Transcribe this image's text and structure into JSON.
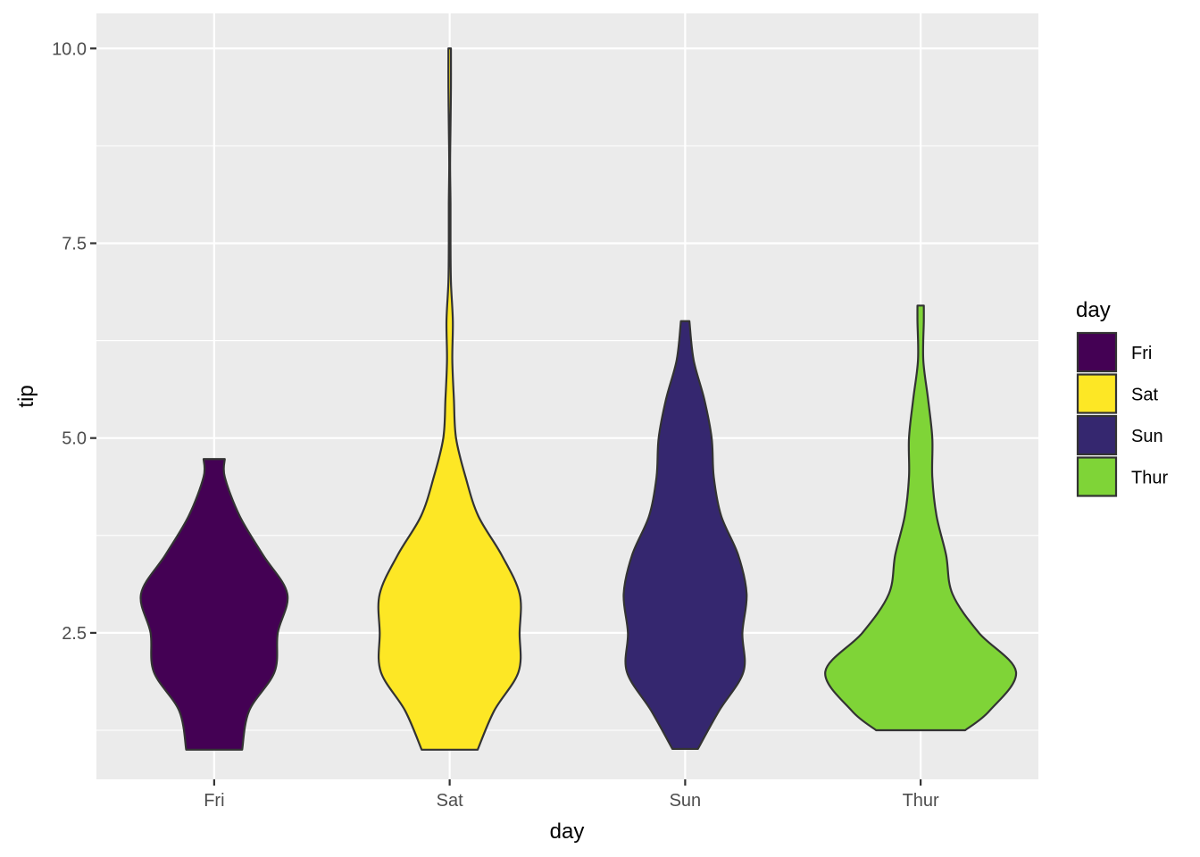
{
  "chart_data": {
    "type": "violin",
    "xlabel": "day",
    "ylabel": "tip",
    "categories": [
      "Fri",
      "Sat",
      "Sun",
      "Thur"
    ],
    "ylim": [
      0.62,
      10.45
    ],
    "yticks": [
      2.5,
      5.0,
      7.5,
      10.0
    ],
    "ytick_labels": [
      "2.5",
      "5.0",
      "7.5",
      "10.0"
    ],
    "grid": true,
    "legend": {
      "title": "day",
      "placement": "right",
      "entries": [
        "Fri",
        "Sat",
        "Sun",
        "Thur"
      ]
    },
    "colors": {
      "Fri": "#440154",
      "Sat": "#FDE725",
      "Sun": "#35276F",
      "Thur": "#7FD437",
      "panel": "#EBEBEB",
      "grid": "#FFFFFF",
      "outline": "#333333"
    },
    "series": [
      {
        "name": "Fri",
        "min": 1.0,
        "max": 4.73,
        "profile": [
          [
            1.0,
            0.264
          ],
          [
            1.5,
            0.33
          ],
          [
            2.0,
            0.57
          ],
          [
            2.5,
            0.6
          ],
          [
            3.0,
            0.69
          ],
          [
            3.5,
            0.46
          ],
          [
            4.0,
            0.24
          ],
          [
            4.5,
            0.1
          ],
          [
            4.73,
            0.1
          ]
        ]
      },
      {
        "name": "Sat",
        "min": 1.0,
        "max": 10.0,
        "profile": [
          [
            1.0,
            0.264
          ],
          [
            1.5,
            0.42
          ],
          [
            2.0,
            0.65
          ],
          [
            2.5,
            0.66
          ],
          [
            3.0,
            0.66
          ],
          [
            3.5,
            0.49
          ],
          [
            4.0,
            0.27
          ],
          [
            4.5,
            0.15
          ],
          [
            5.0,
            0.06
          ],
          [
            5.5,
            0.04
          ],
          [
            6.0,
            0.025
          ],
          [
            6.5,
            0.03
          ],
          [
            7.0,
            0.012
          ],
          [
            7.5,
            0.008
          ],
          [
            8.0,
            0.008
          ],
          [
            8.5,
            0.004
          ],
          [
            9.0,
            0.008
          ],
          [
            9.5,
            0.012
          ],
          [
            10.0,
            0.012
          ]
        ]
      },
      {
        "name": "Sun",
        "min": 1.01,
        "max": 6.5,
        "profile": [
          [
            1.01,
            0.12
          ],
          [
            1.5,
            0.32
          ],
          [
            2.0,
            0.55
          ],
          [
            2.5,
            0.54
          ],
          [
            3.0,
            0.58
          ],
          [
            3.5,
            0.5
          ],
          [
            4.0,
            0.34
          ],
          [
            4.5,
            0.27
          ],
          [
            5.0,
            0.25
          ],
          [
            5.5,
            0.18
          ],
          [
            6.0,
            0.08
          ],
          [
            6.5,
            0.04
          ]
        ]
      },
      {
        "name": "Thur",
        "min": 1.25,
        "max": 6.7,
        "profile": [
          [
            1.25,
            0.42
          ],
          [
            1.5,
            0.65
          ],
          [
            2.0,
            0.9
          ],
          [
            2.5,
            0.55
          ],
          [
            3.0,
            0.3
          ],
          [
            3.5,
            0.24
          ],
          [
            4.0,
            0.15
          ],
          [
            4.5,
            0.11
          ],
          [
            5.0,
            0.11
          ],
          [
            5.5,
            0.07
          ],
          [
            6.0,
            0.025
          ],
          [
            6.5,
            0.03
          ],
          [
            6.7,
            0.03
          ]
        ]
      }
    ]
  }
}
